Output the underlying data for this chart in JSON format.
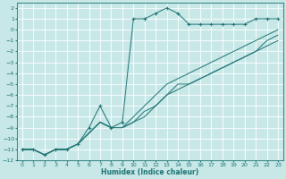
{
  "xlabel": "Humidex (Indice chaleur)",
  "background_color": "#c8e8e8",
  "grid_color": "#ffffff",
  "line_color": "#1a7070",
  "xlim": [
    -0.5,
    23.5
  ],
  "ylim": [
    -12,
    2.5
  ],
  "xticks": [
    0,
    1,
    2,
    3,
    4,
    5,
    6,
    7,
    8,
    9,
    10,
    11,
    12,
    13,
    14,
    15,
    16,
    17,
    18,
    19,
    20,
    21,
    22,
    23
  ],
  "yticks": [
    2,
    1,
    0,
    -1,
    -2,
    -3,
    -4,
    -5,
    -6,
    -7,
    -8,
    -9,
    -10,
    -11,
    -12
  ],
  "main_x": [
    0,
    1,
    2,
    3,
    4,
    5,
    6,
    7,
    8,
    9,
    10,
    11,
    12,
    13,
    14,
    15,
    16,
    17,
    18,
    19,
    20,
    21,
    22,
    23
  ],
  "main_y": [
    -11,
    -11,
    -11.5,
    -11,
    -11,
    -10.5,
    -9,
    -7,
    -9,
    -8.5,
    1,
    1,
    1.5,
    2,
    1.5,
    0.5,
    0.5,
    0.5,
    0.5,
    0.5,
    0.5,
    1,
    1,
    1
  ],
  "s1_x": [
    0,
    1,
    2,
    3,
    4,
    5,
    6,
    7,
    8,
    9,
    10,
    11,
    12,
    13,
    14,
    15,
    16,
    17,
    18,
    19,
    20,
    21,
    22,
    23
  ],
  "s1_y": [
    -11,
    -11,
    -11.5,
    -11,
    -11,
    -10.5,
    -9.5,
    -8.5,
    -9,
    -9,
    -8.5,
    -7.5,
    -7,
    -6,
    -5,
    -5,
    -4.5,
    -4,
    -3.5,
    -3,
    -2.5,
    -2,
    -1.5,
    -1
  ],
  "s2_x": [
    0,
    1,
    2,
    3,
    4,
    5,
    6,
    7,
    8,
    9,
    10,
    11,
    12,
    13,
    14,
    15,
    16,
    17,
    18,
    19,
    20,
    21,
    22,
    23
  ],
  "s2_y": [
    -11,
    -11,
    -11.5,
    -11,
    -11,
    -10.5,
    -9.5,
    -8.5,
    -9,
    -9,
    -8.5,
    -8,
    -7,
    -6,
    -5.5,
    -5,
    -4.5,
    -4,
    -3.5,
    -3,
    -2.5,
    -2,
    -1,
    -0.5
  ],
  "s3_x": [
    0,
    1,
    2,
    3,
    4,
    5,
    6,
    7,
    8,
    9,
    10,
    11,
    12,
    13,
    14,
    15,
    16,
    17,
    18,
    19,
    20,
    21,
    22,
    23
  ],
  "s3_y": [
    -11,
    -11,
    -11.5,
    -11,
    -11,
    -10.5,
    -9.5,
    -8.5,
    -9,
    -9,
    -8,
    -7,
    -6,
    -5,
    -4.5,
    -4,
    -3.5,
    -3,
    -2.5,
    -2,
    -1.5,
    -1,
    -0.5,
    0
  ]
}
